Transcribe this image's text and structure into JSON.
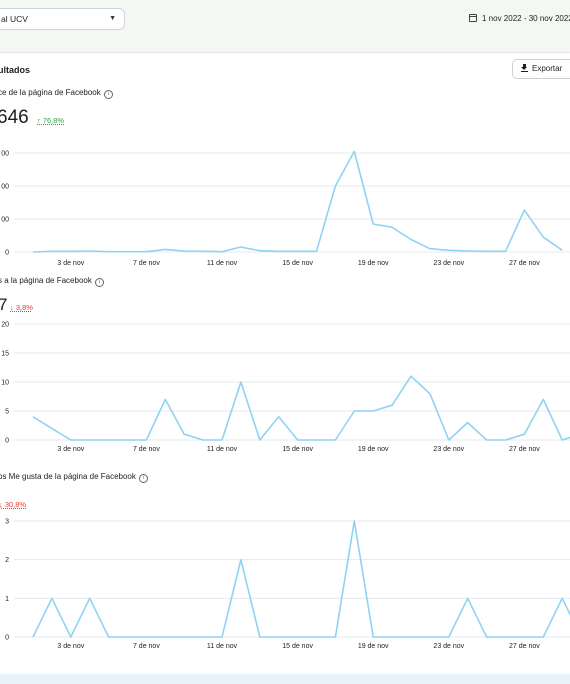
{
  "topbar": {
    "account_select": "al UCV",
    "date_range": "1 nov 2022 - 30 nov 2022"
  },
  "results": {
    "title": "ultados",
    "export_label": "Exportar"
  },
  "x_tick_labels": [
    "3 de nov",
    "7 de nov",
    "11 de nov",
    "15 de nov",
    "19 de nov",
    "23 de nov",
    "27 de nov"
  ],
  "chart_data": [
    {
      "type": "line",
      "title": "ce de la página de Facebook",
      "total": "646",
      "delta": "↑ 76,8%",
      "delta_direction": "up",
      "y_ticks": [
        "00",
        "00",
        "00",
        "0"
      ],
      "x_ticks": [
        "3 de nov",
        "7 de nov",
        "11 de nov",
        "15 de nov",
        "19 de nov",
        "23 de nov",
        "27 de nov"
      ],
      "series_color": "#8fd3f4",
      "ylim": [
        0,
        300
      ],
      "values": [
        0,
        2,
        2,
        3,
        1,
        1,
        1,
        8,
        3,
        2,
        1,
        15,
        4,
        2,
        2,
        2,
        200,
        305,
        85,
        75,
        38,
        10,
        5,
        3,
        2,
        2,
        127,
        45,
        5
      ]
    },
    {
      "type": "line",
      "title": "s a la página de Facebook",
      "total": "7",
      "delta": "↓ 3,8%",
      "delta_direction": "down",
      "y_ticks": [
        "20",
        "15",
        "10",
        "5",
        "0"
      ],
      "x_ticks": [
        "3 de nov",
        "7 de nov",
        "11 de nov",
        "15 de nov",
        "19 de nov",
        "23 de nov",
        "27 de nov"
      ],
      "series_color": "#8fd3f4",
      "ylim": [
        0,
        20
      ],
      "values": [
        4,
        2,
        0,
        0,
        0,
        0,
        0,
        7,
        1,
        0,
        0,
        10,
        0,
        4,
        0,
        0,
        0,
        5,
        5,
        6,
        11,
        8,
        0,
        3,
        0,
        0,
        1,
        7,
        0,
        1
      ]
    },
    {
      "type": "line",
      "title": "os Me gusta de la página de Facebook",
      "total": "",
      "delta": "↓ 30,8%",
      "delta_direction": "down",
      "y_ticks": [
        "3",
        "2",
        "1",
        "0"
      ],
      "x_ticks": [
        "3 de nov",
        "7 de nov",
        "11 de nov",
        "15 de nov",
        "19 de nov",
        "23 de nov",
        "27 de nov"
      ],
      "series_color": "#8fd3f4",
      "ylim": [
        0,
        3
      ],
      "values": [
        0,
        1,
        0,
        1,
        0,
        0,
        0,
        0,
        0,
        0,
        0,
        2,
        0,
        0,
        0,
        0,
        0,
        3,
        0,
        0,
        0,
        0,
        0,
        1,
        0,
        0,
        0,
        0,
        1,
        0
      ]
    }
  ]
}
